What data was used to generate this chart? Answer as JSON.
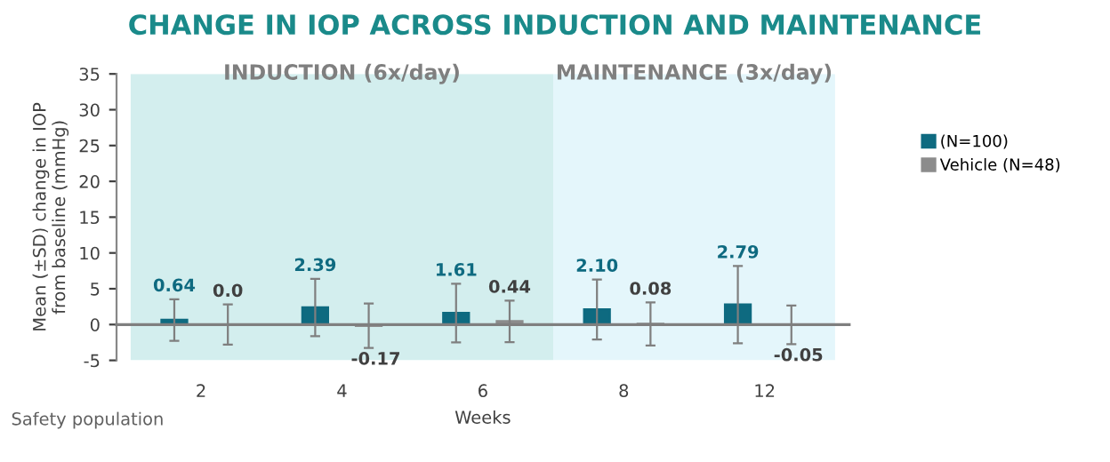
{
  "chart_data": {
    "type": "bar",
    "title": "CHANGE IN IOP ACROSS INDUCTION AND MAINTENANCE",
    "xlabel": "Weeks",
    "ylabel": "Mean (±SD) change in IOP\nfrom baseline (mmHg)",
    "categories": [
      "2",
      "4",
      "6",
      "8",
      "12"
    ],
    "series": [
      {
        "name": "(N=100)",
        "color": "#0e6a80",
        "values": [
          0.64,
          2.39,
          1.61,
          2.1,
          2.79
        ],
        "errors": [
          2.9,
          4.0,
          4.1,
          4.2,
          5.4
        ],
        "value_labels": [
          "0.64",
          "2.39",
          "1.61",
          "2.10",
          "2.79"
        ]
      },
      {
        "name": "Vehicle (N=48)",
        "color": "#8c8c8c",
        "values": [
          0.0,
          -0.17,
          0.44,
          0.08,
          -0.05
        ],
        "errors": [
          2.8,
          3.1,
          2.9,
          3.0,
          2.7
        ],
        "value_labels": [
          "0.0",
          "-0.17",
          "0.44",
          "0.08",
          "-0.05"
        ]
      }
    ],
    "bands": [
      {
        "axis": "x",
        "from": "2",
        "to": "6",
        "label": "INDUCTION (6x/day)",
        "color": "#d3eeee"
      },
      {
        "axis": "x",
        "from": "8",
        "to": "12",
        "label": "MAINTENANCE (3x/day)",
        "color": "#e4f6fb"
      }
    ],
    "ylim": [
      -5,
      35
    ],
    "yticks": [
      -5,
      0,
      5,
      10,
      15,
      20,
      25,
      30,
      35
    ],
    "legend": "right",
    "annotations": [
      "Safety population"
    ]
  }
}
